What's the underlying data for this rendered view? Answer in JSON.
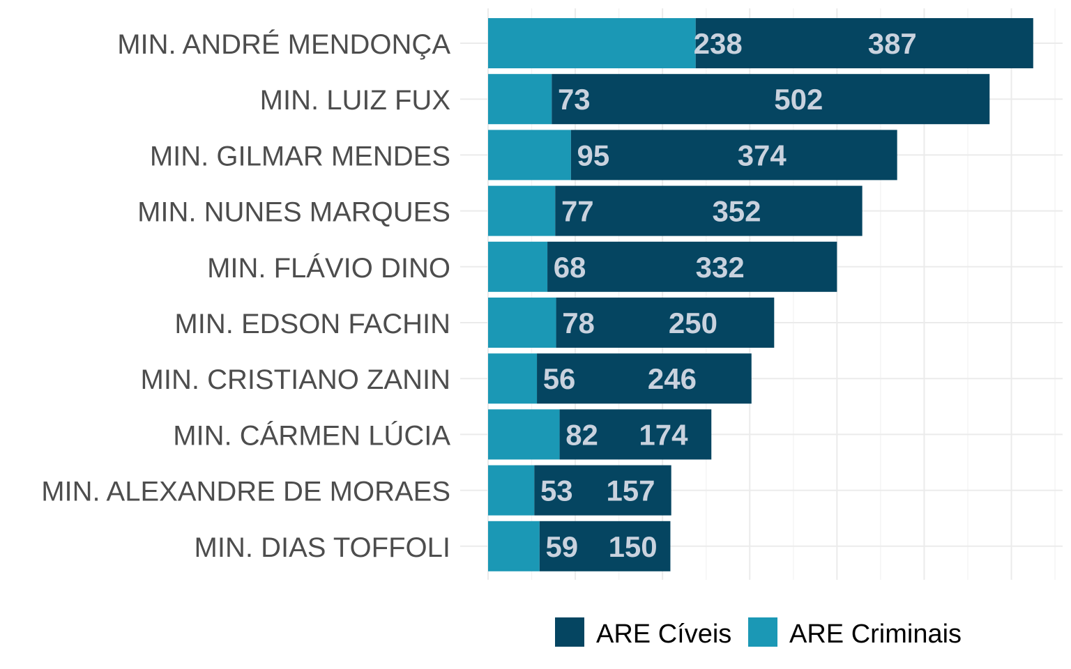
{
  "chart_data": {
    "type": "bar",
    "orientation": "horizontal",
    "stacked": true,
    "categories": [
      "MIN. ANDRÉ MENDONÇA",
      "MIN. LUIZ FUX",
      "MIN. GILMAR MENDES",
      "MIN. NUNES MARQUES",
      "MIN. FLÁVIO DINO",
      "MIN. EDSON FACHIN",
      "MIN. CRISTIANO ZANIN",
      "MIN. CÁRMEN LÚCIA",
      "MIN. ALEXANDRE DE MORAES",
      "MIN. DIAS TOFFOLI"
    ],
    "series": [
      {
        "name": "ARE Criminais",
        "color": "#1b98b5",
        "values": [
          238,
          73,
          95,
          77,
          68,
          78,
          56,
          82,
          53,
          59
        ]
      },
      {
        "name": "ARE Cíveis",
        "color": "#054561",
        "values": [
          387,
          502,
          374,
          352,
          332,
          250,
          246,
          174,
          157,
          150
        ]
      }
    ],
    "xlim": [
      0,
      660
    ],
    "x_tick_labels_shown": false,
    "grid": true,
    "legend_position": "bottom",
    "legend_order": [
      "ARE Cíveis",
      "ARE Criminais"
    ]
  }
}
